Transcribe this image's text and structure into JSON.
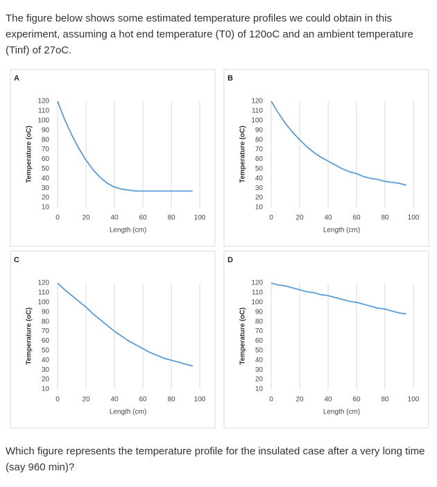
{
  "intro": "The figure below shows some estimated temperature profiles we could obtain in this experiment, assuming a hot end temperature (T0) of 120oC and an ambient temperature (Tinf) of 27oC.",
  "chart_data": [
    {
      "type": "line",
      "panel": "A",
      "xlabel": "Length (cm)",
      "ylabel": "Temperature (oC)",
      "x": [
        0,
        5,
        10,
        15,
        20,
        25,
        30,
        35,
        40,
        45,
        50,
        55,
        60,
        65,
        70,
        75,
        80,
        85,
        90,
        95
      ],
      "values": [
        120,
        101,
        85,
        71,
        59,
        49,
        41,
        35,
        31,
        29,
        28,
        27,
        27,
        27,
        27,
        27,
        27,
        27,
        27,
        27
      ],
      "color": "#5b9bd5",
      "xlim": [
        0,
        100
      ],
      "ylim": [
        10,
        120
      ],
      "xticks": [
        0,
        20,
        40,
        60,
        80,
        100
      ],
      "yticks": [
        10,
        20,
        30,
        40,
        50,
        60,
        70,
        80,
        90,
        100,
        110,
        120
      ],
      "grid": true
    },
    {
      "type": "line",
      "panel": "B",
      "xlabel": "Length (cm)",
      "ylabel": "Temperature (oC)",
      "x": [
        0,
        5,
        10,
        15,
        20,
        25,
        30,
        35,
        40,
        45,
        50,
        55,
        60,
        65,
        70,
        75,
        80,
        85,
        90,
        95
      ],
      "values": [
        120,
        108,
        97,
        88,
        80,
        73,
        67,
        62,
        58,
        54,
        50,
        47,
        45,
        42,
        40,
        39,
        37,
        36,
        35,
        33
      ],
      "color": "#5b9bd5",
      "xlim": [
        0,
        100
      ],
      "ylim": [
        10,
        120
      ],
      "xticks": [
        0,
        20,
        40,
        60,
        80,
        100
      ],
      "yticks": [
        10,
        20,
        30,
        40,
        50,
        60,
        70,
        80,
        90,
        100,
        110,
        120
      ],
      "grid": true
    },
    {
      "type": "line",
      "panel": "C",
      "xlabel": "Length (cm)",
      "ylabel": "Temperature (oC)",
      "x": [
        0,
        5,
        10,
        15,
        20,
        25,
        30,
        35,
        40,
        45,
        50,
        55,
        60,
        65,
        70,
        75,
        80,
        85,
        90,
        95
      ],
      "values": [
        120,
        113,
        107,
        101,
        95,
        88,
        82,
        76,
        70,
        65,
        60,
        56,
        52,
        48,
        45,
        42,
        40,
        38,
        36,
        34
      ],
      "color": "#5b9bd5",
      "xlim": [
        0,
        100
      ],
      "ylim": [
        10,
        120
      ],
      "xticks": [
        0,
        20,
        40,
        60,
        80,
        100
      ],
      "yticks": [
        10,
        20,
        30,
        40,
        50,
        60,
        70,
        80,
        90,
        100,
        110,
        120
      ],
      "grid": true
    },
    {
      "type": "line",
      "panel": "D",
      "xlabel": "Length (cm)",
      "ylabel": "Temperature (oC)",
      "x": [
        0,
        5,
        10,
        15,
        20,
        25,
        30,
        35,
        40,
        45,
        50,
        55,
        60,
        65,
        70,
        75,
        80,
        85,
        90,
        95
      ],
      "values": [
        120,
        118,
        117,
        115,
        113,
        111,
        110,
        108,
        107,
        105,
        103,
        101,
        100,
        98,
        96,
        94,
        93,
        91,
        89,
        88
      ],
      "color": "#5b9bd5",
      "xlim": [
        0,
        100
      ],
      "ylim": [
        10,
        120
      ],
      "xticks": [
        0,
        20,
        40,
        60,
        80,
        100
      ],
      "yticks": [
        10,
        20,
        30,
        40,
        50,
        60,
        70,
        80,
        90,
        100,
        110,
        120
      ],
      "grid": true
    }
  ],
  "question": "Which figure represents the temperature profile for the insulated case after a very long time (say 960 min)?"
}
